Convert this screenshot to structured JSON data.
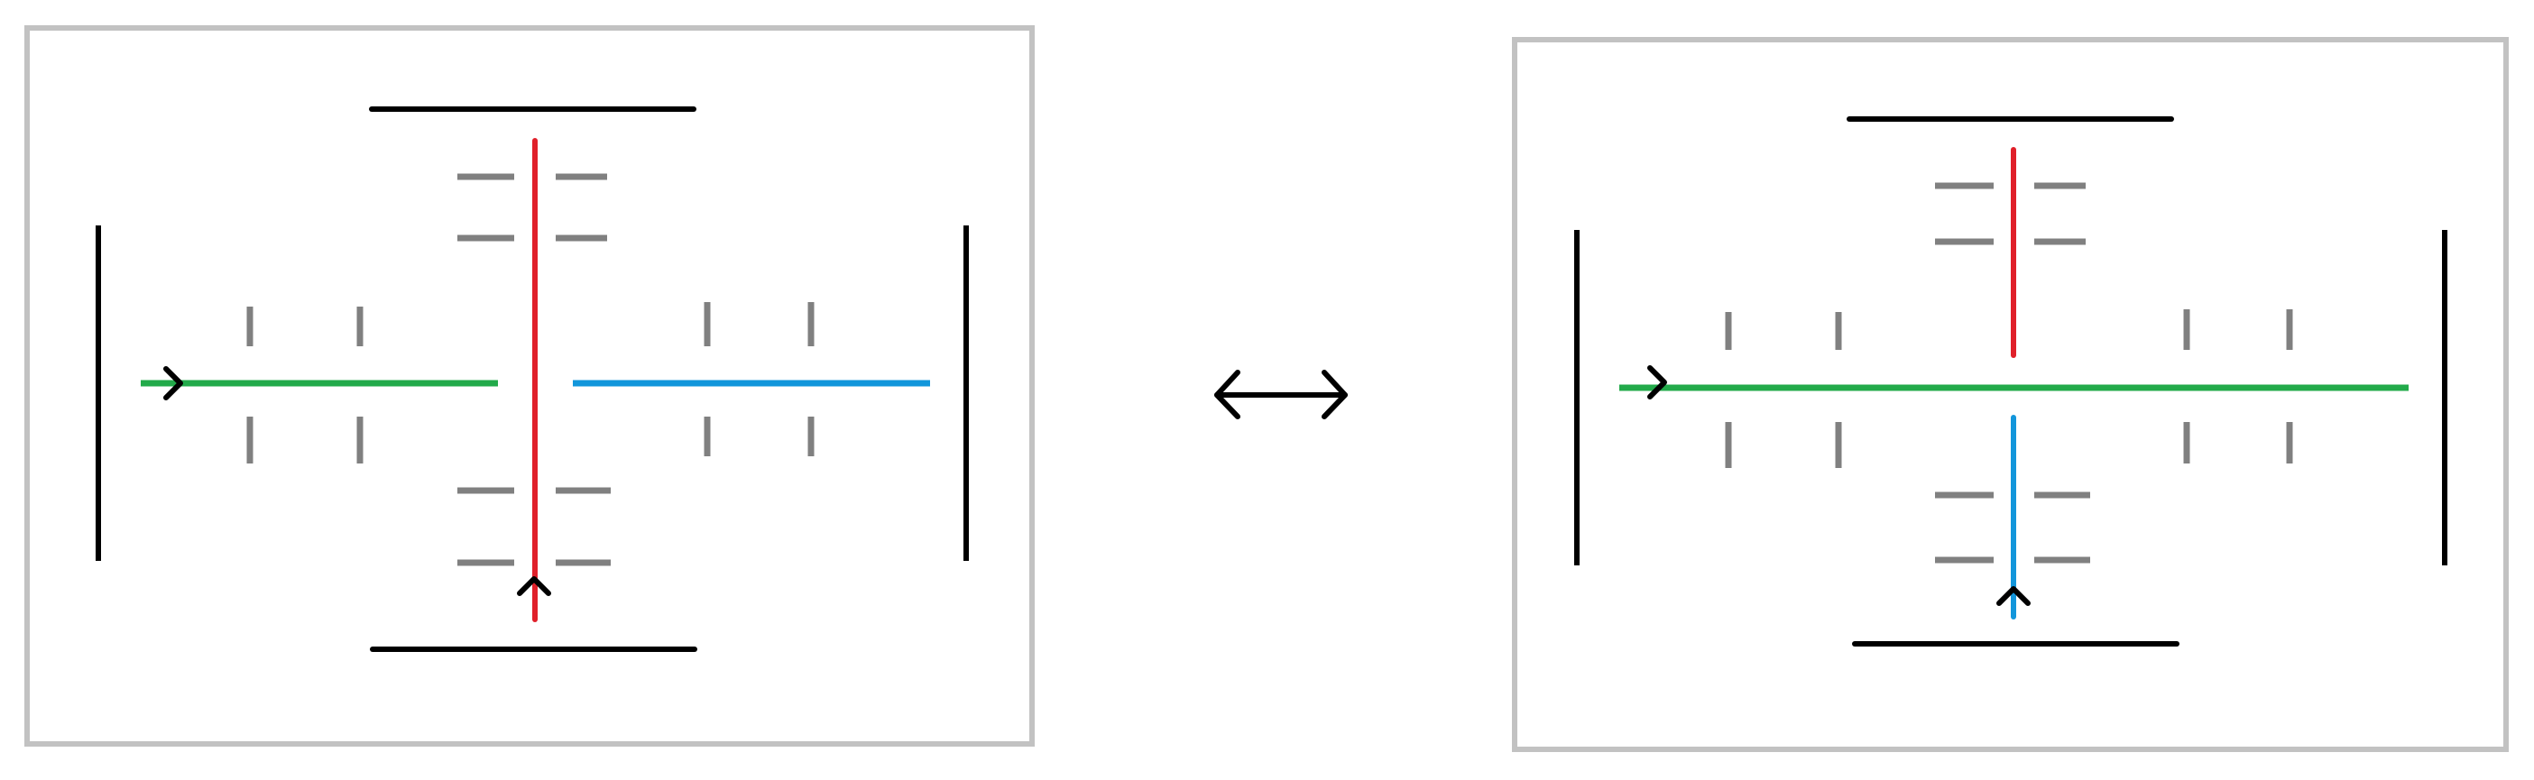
{
  "colors": {
    "background": "#ffffff",
    "frame": "#c2c2c2",
    "boundary": "#000000",
    "marking": "#808080",
    "red_line": "#e0202a",
    "green_line": "#22aa4a",
    "blue_line": "#1296db",
    "arrow": "#000000"
  },
  "diagrams": [
    {
      "id": "left-configuration",
      "lines": [
        "red-line-vertical",
        "green-line-horizontal-left",
        "blue-line-horizontal-right"
      ]
    },
    {
      "id": "right-configuration",
      "lines": [
        "red-line-vertical-top",
        "green-line-horizontal",
        "blue-line-vertical-bottom"
      ]
    }
  ],
  "relation": {
    "symbol": "bidirectional-arrow-icon"
  }
}
